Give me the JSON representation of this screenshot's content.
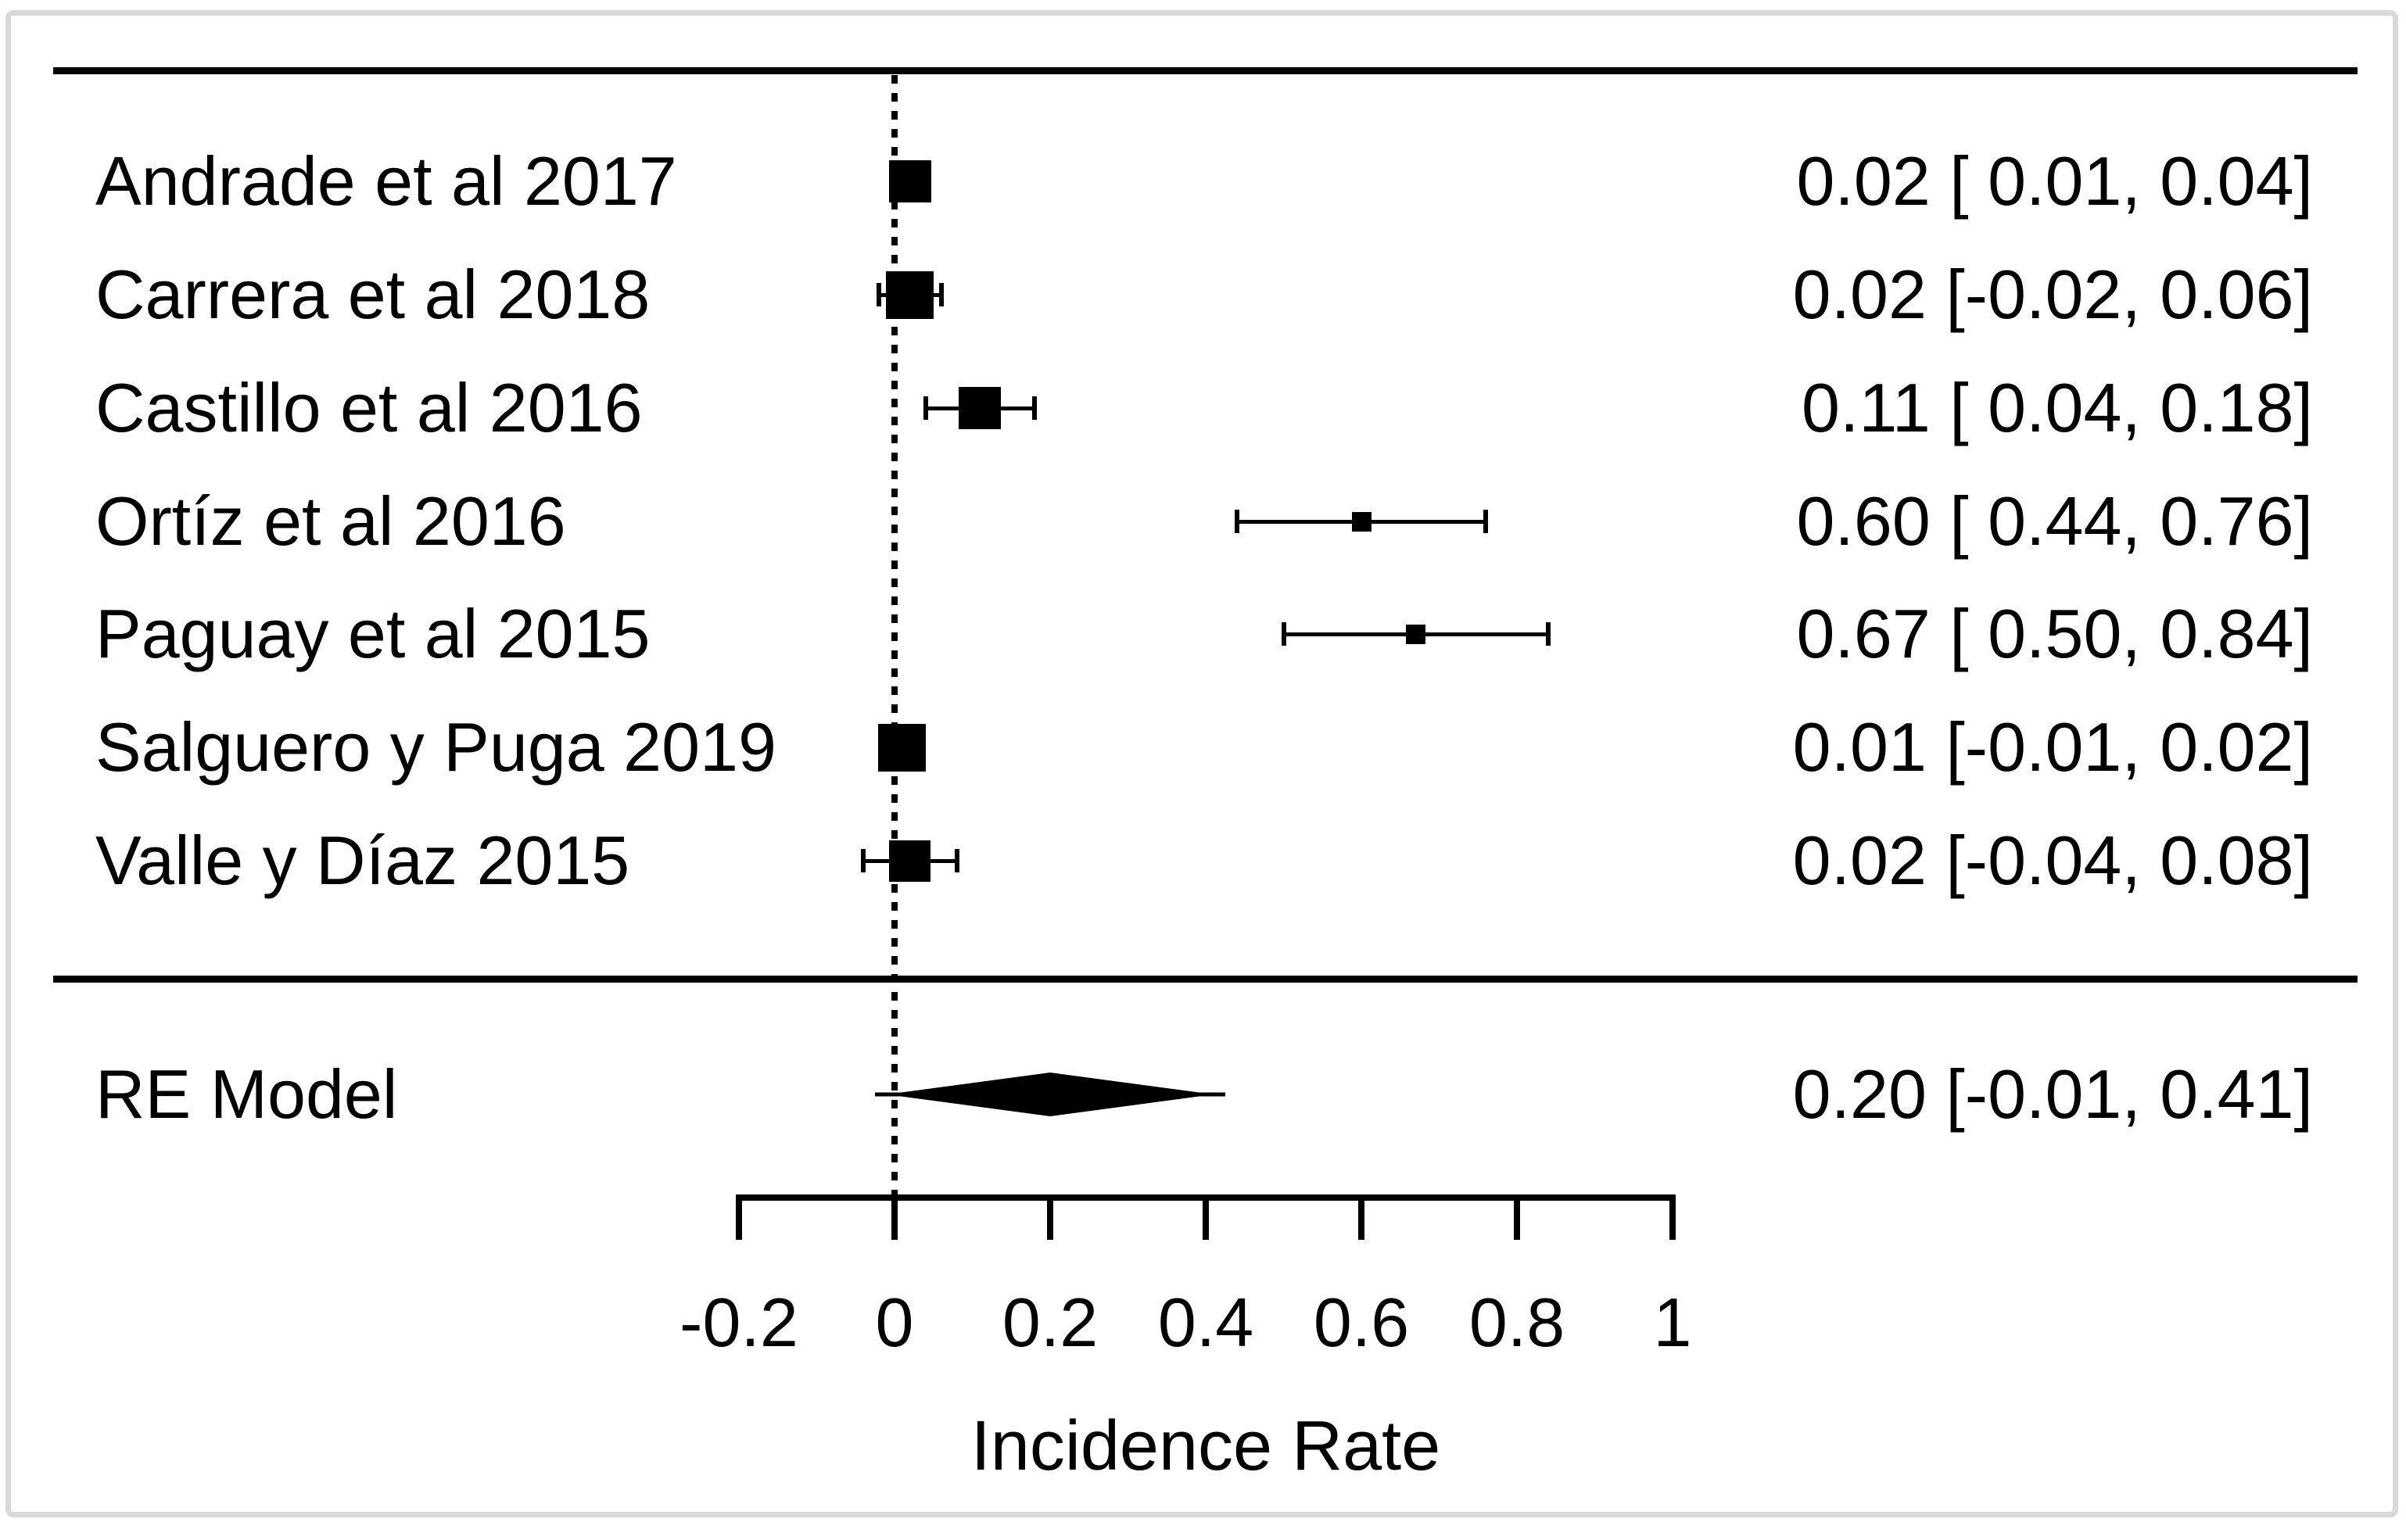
{
  "colors": {
    "ink": "#000000",
    "background": "#ffffff",
    "frame": "#d9d9d9"
  },
  "chart_data": {
    "type": "forest",
    "xlabel": "Incidence Rate",
    "xlim": [
      -0.2,
      1
    ],
    "zero_reference_line": 0,
    "grid": false,
    "x_ticks": [
      -0.2,
      0,
      0.2,
      0.4,
      0.6,
      0.8,
      1
    ],
    "x_tick_labels": [
      "-0.2",
      "0",
      "0.2",
      "0.4",
      "0.6",
      "0.8",
      "1"
    ],
    "estimate_column_header": "",
    "studies": [
      {
        "label": "Andrade et al 2017",
        "estimate": 0.02,
        "ci_low": 0.01,
        "ci_high": 0.04,
        "display": "0.02 [ 0.01, 0.04]",
        "marker_size": 54
      },
      {
        "label": "Carrera et al 2018",
        "estimate": 0.02,
        "ci_low": -0.02,
        "ci_high": 0.06,
        "display": "0.02 [-0.02, 0.06]",
        "marker_size": 61
      },
      {
        "label": "Castillo et al 2016",
        "estimate": 0.11,
        "ci_low": 0.04,
        "ci_high": 0.18,
        "display": "0.11 [ 0.04, 0.18]",
        "marker_size": 54
      },
      {
        "label": "Ortíz et al 2016",
        "estimate": 0.6,
        "ci_low": 0.44,
        "ci_high": 0.76,
        "display": "0.60 [ 0.44, 0.76]",
        "marker_size": 25
      },
      {
        "label": "Paguay et al 2015",
        "estimate": 0.67,
        "ci_low": 0.5,
        "ci_high": 0.84,
        "display": "0.67 [ 0.50, 0.84]",
        "marker_size": 25
      },
      {
        "label": "Salguero y Puga 2019",
        "estimate": 0.01,
        "ci_low": -0.01,
        "ci_high": 0.02,
        "display": "0.01 [-0.01, 0.02]",
        "marker_size": 61
      },
      {
        "label": "Valle y Díaz 2015",
        "estimate": 0.02,
        "ci_low": -0.04,
        "ci_high": 0.08,
        "display": "0.02 [-0.04, 0.08]",
        "marker_size": 53
      }
    ],
    "summary": {
      "label": "RE Model",
      "estimate": 0.2,
      "ci_low": -0.01,
      "ci_high": 0.41,
      "display": "0.20 [-0.01, 0.41]"
    }
  }
}
